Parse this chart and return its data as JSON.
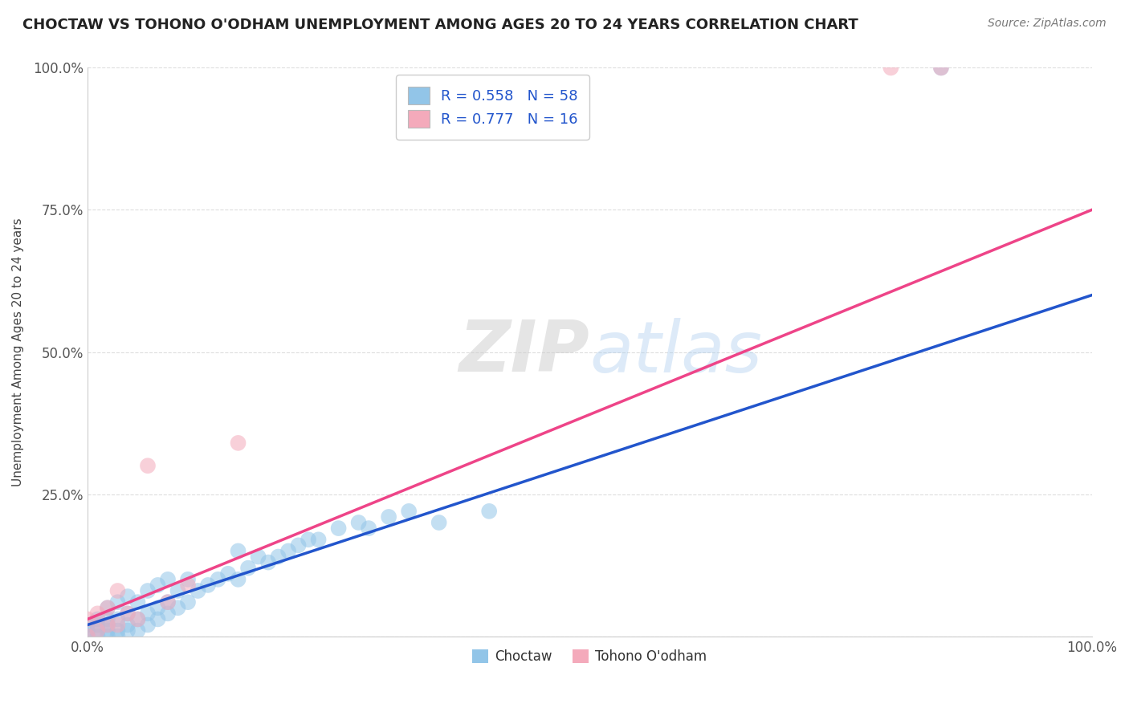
{
  "title": "CHOCTAW VS TOHONO O'ODHAM UNEMPLOYMENT AMONG AGES 20 TO 24 YEARS CORRELATION CHART",
  "source": "Source: ZipAtlas.com",
  "ylabel": "Unemployment Among Ages 20 to 24 years",
  "xlim": [
    0.0,
    1.0
  ],
  "ylim": [
    0.0,
    1.0
  ],
  "yticks": [
    0.0,
    0.25,
    0.5,
    0.75,
    1.0
  ],
  "ytick_labels": [
    "",
    "25.0%",
    "50.0%",
    "75.0%",
    "100.0%"
  ],
  "xtick_labels_show": [
    "0.0%",
    "100.0%"
  ],
  "choctaw_color": "#92C5E8",
  "tohono_color": "#F4AABB",
  "choctaw_line_color": "#2255CC",
  "tohono_line_color": "#EE4488",
  "choctaw_R": 0.558,
  "choctaw_N": 58,
  "tohono_R": 0.777,
  "tohono_N": 16,
  "legend_label_choctaw": "Choctaw",
  "legend_label_tohono": "Tohono O'odham",
  "watermark_zip": "ZIP",
  "watermark_atlas": "atlas",
  "choctaw_line_x0": 0.0,
  "choctaw_line_y0": 0.02,
  "choctaw_line_x1": 1.0,
  "choctaw_line_y1": 0.6,
  "tohono_line_x0": 0.0,
  "tohono_line_y0": 0.03,
  "tohono_line_x1": 1.0,
  "tohono_line_y1": 0.75,
  "choctaw_x": [
    0.0,
    0.0,
    0.0,
    0.01,
    0.01,
    0.01,
    0.01,
    0.02,
    0.02,
    0.02,
    0.02,
    0.02,
    0.03,
    0.03,
    0.03,
    0.03,
    0.04,
    0.04,
    0.04,
    0.04,
    0.05,
    0.05,
    0.05,
    0.06,
    0.06,
    0.06,
    0.07,
    0.07,
    0.07,
    0.08,
    0.08,
    0.08,
    0.09,
    0.09,
    0.1,
    0.1,
    0.11,
    0.12,
    0.13,
    0.14,
    0.15,
    0.15,
    0.16,
    0.17,
    0.18,
    0.19,
    0.2,
    0.21,
    0.22,
    0.23,
    0.25,
    0.27,
    0.28,
    0.3,
    0.32,
    0.35,
    0.4,
    0.85
  ],
  "choctaw_y": [
    0.0,
    0.01,
    0.02,
    0.0,
    0.01,
    0.02,
    0.03,
    0.0,
    0.01,
    0.02,
    0.03,
    0.05,
    0.0,
    0.01,
    0.03,
    0.06,
    0.01,
    0.02,
    0.04,
    0.07,
    0.01,
    0.03,
    0.06,
    0.02,
    0.04,
    0.08,
    0.03,
    0.05,
    0.09,
    0.04,
    0.06,
    0.1,
    0.05,
    0.08,
    0.06,
    0.1,
    0.08,
    0.09,
    0.1,
    0.11,
    0.1,
    0.15,
    0.12,
    0.14,
    0.13,
    0.14,
    0.15,
    0.16,
    0.17,
    0.17,
    0.19,
    0.2,
    0.19,
    0.21,
    0.22,
    0.2,
    0.22,
    1.0
  ],
  "tohono_x": [
    0.0,
    0.0,
    0.01,
    0.01,
    0.02,
    0.02,
    0.03,
    0.03,
    0.04,
    0.05,
    0.06,
    0.08,
    0.1,
    0.15,
    0.8,
    0.85
  ],
  "tohono_y": [
    0.0,
    0.03,
    0.01,
    0.04,
    0.02,
    0.05,
    0.02,
    0.08,
    0.04,
    0.03,
    0.3,
    0.06,
    0.09,
    0.34,
    1.0,
    1.0
  ]
}
